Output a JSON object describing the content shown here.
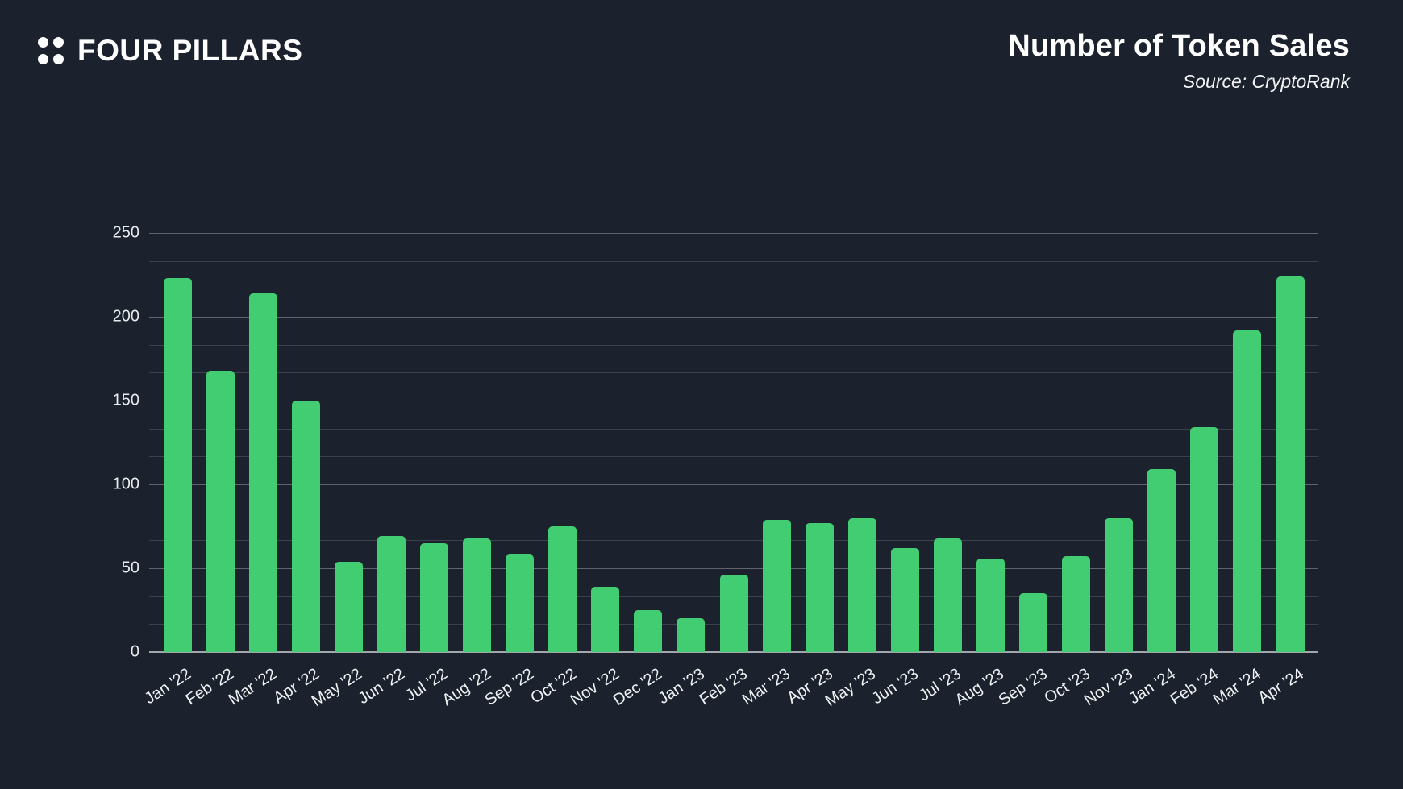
{
  "header": {
    "brand": "FOUR PILLARS",
    "title": "Number of Token Sales",
    "source": "Source: CryptoRank"
  },
  "colors": {
    "background": "#1b222d",
    "bar": "#43cd73",
    "text": "#ffffff"
  },
  "chart_data": {
    "type": "bar",
    "title": "Number of Token Sales",
    "source": "Source: CryptoRank",
    "categories": [
      "Jan '22",
      "Feb '22",
      "Mar '22",
      "Apr '22",
      "May '22",
      "Jun '22",
      "Jul '22",
      "Aug '22",
      "Sep '22",
      "Oct '22",
      "Nov '22",
      "Dec '22",
      "Jan '23",
      "Feb '23",
      "Mar '23",
      "Apr '23",
      "May '23",
      "Jun '23",
      "Jul '23",
      "Aug '23",
      "Sep '23",
      "Oct '23",
      "Nov '23",
      "Jan '24",
      "Feb '24",
      "Mar '24",
      "Apr '24"
    ],
    "values": [
      223,
      168,
      214,
      150,
      54,
      69,
      65,
      68,
      58,
      75,
      39,
      25,
      20,
      46,
      79,
      77,
      80,
      62,
      68,
      56,
      35,
      57,
      80,
      109,
      134,
      192,
      224
    ],
    "xlabel": "",
    "ylabel": "",
    "ylim": [
      0,
      250
    ],
    "yticks": [
      0,
      50,
      100,
      150,
      200,
      250
    ],
    "grid": "horizontal majors every 50 with 2 minor lines between (step 16.67)",
    "legend": "none",
    "bar_color": "#43cd73",
    "note": "Dec '23 not present on axis"
  }
}
